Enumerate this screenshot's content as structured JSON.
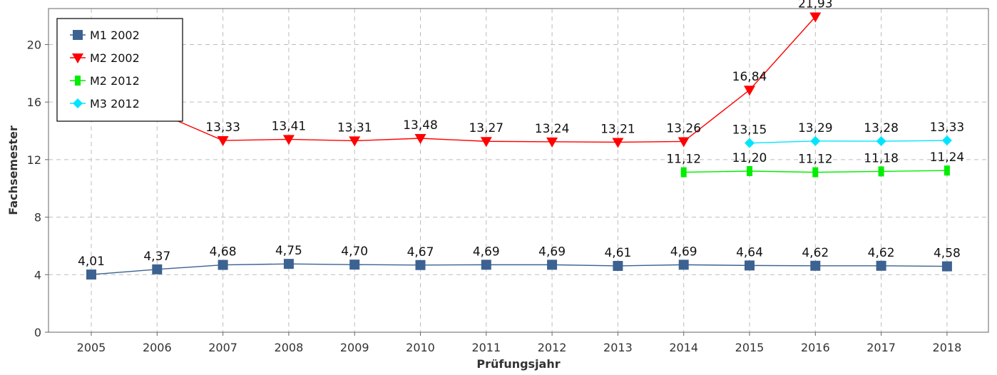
{
  "chart_data": {
    "type": "line",
    "title": "",
    "xlabel": "Prüfungsjahr",
    "ylabel": "Fachsemester",
    "categories": [
      "2005",
      "2006",
      "2007",
      "2008",
      "2009",
      "2010",
      "2011",
      "2012",
      "2013",
      "2014",
      "2015",
      "2016",
      "2017",
      "2018"
    ],
    "ylim": [
      0,
      22.5
    ],
    "yticks": [
      0,
      4,
      8,
      12,
      16,
      20
    ],
    "grid": true,
    "legend_position": "top-left",
    "series": [
      {
        "name": "M1 2002",
        "color": "#3c6291",
        "marker": "square",
        "values": [
          4.01,
          4.37,
          4.68,
          4.75,
          4.7,
          4.67,
          4.69,
          4.69,
          4.61,
          4.69,
          4.64,
          4.62,
          4.62,
          4.58
        ],
        "labels": [
          "4,01",
          "4,37",
          "4,68",
          "4,75",
          "4,70",
          "4,67",
          "4,69",
          "4,69",
          "4,61",
          "4,69",
          "4,64",
          "4,62",
          "4,62",
          "4,58"
        ]
      },
      {
        "name": "M2 2002",
        "color": "#ff0000",
        "marker": "triangle-down",
        "values": [
          null,
          15.3,
          13.33,
          13.41,
          13.31,
          13.48,
          13.27,
          13.24,
          13.21,
          13.26,
          16.84,
          21.93,
          null,
          null
        ],
        "labels": [
          null,
          null,
          "13,33",
          "13,41",
          "13,31",
          "13,48",
          "13,27",
          "13,24",
          "13,21",
          "13,26",
          "16,84",
          "21,93",
          null,
          null
        ]
      },
      {
        "name": "M2 2012",
        "color": "#00ee00",
        "marker": "bar",
        "values": [
          null,
          null,
          null,
          null,
          null,
          null,
          null,
          null,
          null,
          11.12,
          11.2,
          11.12,
          11.18,
          11.24
        ],
        "labels": [
          null,
          null,
          null,
          null,
          null,
          null,
          null,
          null,
          null,
          "11,12",
          "11,20",
          "11,12",
          "11,18",
          "11,24"
        ]
      },
      {
        "name": "M3 2012",
        "color": "#00e5ff",
        "marker": "diamond",
        "values": [
          null,
          null,
          null,
          null,
          null,
          null,
          null,
          null,
          null,
          null,
          13.15,
          13.29,
          13.28,
          13.33
        ],
        "labels": [
          null,
          null,
          null,
          null,
          null,
          null,
          null,
          null,
          null,
          null,
          "13,15",
          "13,29",
          "13,28",
          "13,33"
        ]
      }
    ]
  }
}
